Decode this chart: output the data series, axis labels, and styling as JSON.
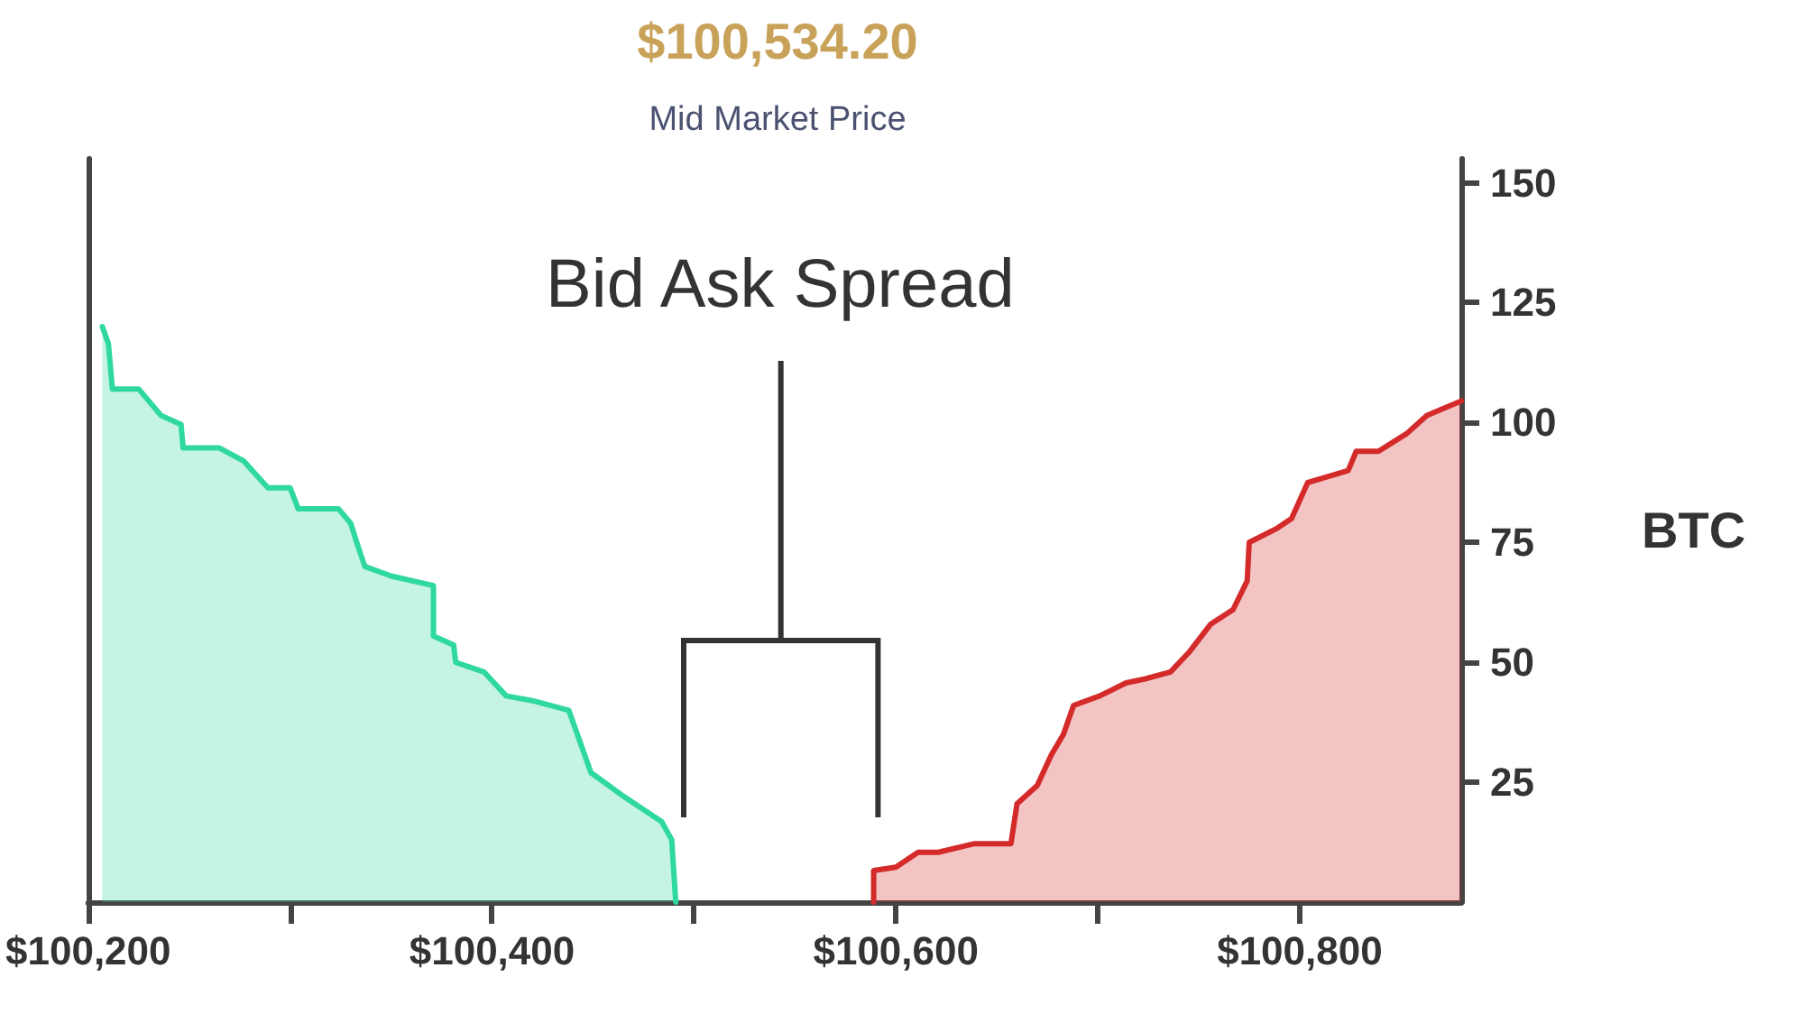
{
  "chart_data": {
    "type": "area",
    "title": "$100,534.20",
    "subtitle": "Mid Market Price",
    "ylabel": "BTC",
    "annotations": [
      "Bid Ask Spread"
    ],
    "xlim": [
      100200,
      100880
    ],
    "ylim": [
      0,
      155
    ],
    "xticks": [
      {
        "value": 100200,
        "label": "$100,200"
      },
      {
        "value": 100300,
        "label": null
      },
      {
        "value": 100400,
        "label": "$100,400"
      },
      {
        "value": 100500,
        "label": null
      },
      {
        "value": 100600,
        "label": "$100,600"
      },
      {
        "value": 100700,
        "label": null
      },
      {
        "value": 100800,
        "label": "$100,800"
      }
    ],
    "yticks": [
      25,
      50,
      75,
      100,
      125,
      150
    ],
    "grid": false,
    "marker": "none",
    "line_style": "solid",
    "series": [
      {
        "color": "#2ed8a0",
        "x": [
          100207,
          100210,
          100212,
          100225,
          100236,
          100246,
          100247,
          100265,
          100277,
          100289,
          100300,
          100304,
          100324,
          100330,
          100333,
          100337,
          100350,
          100371,
          100371,
          100381,
          100382,
          100396,
          100407,
          100420,
          100438,
          100449,
          100464,
          100484,
          100489,
          100491
        ],
        "values": [
          120,
          116.5,
          107,
          107,
          101.5,
          99.6,
          94.7,
          94.7,
          92,
          86.4,
          86.4,
          82,
          82,
          79,
          75,
          70,
          68,
          66,
          55.5,
          53.6,
          50,
          48,
          43,
          42,
          40,
          27,
          22.4,
          16.8,
          13,
          0
        ]
      },
      {
        "color": "#d42a2a",
        "x": [
          100589,
          100589,
          100600,
          100611,
          100621,
          100639,
          100657,
          100660,
          100670,
          100677,
          100683,
          100688,
          100701,
          100714,
          100723,
          100736,
          100745,
          100756,
          100767,
          100774,
          100775,
          100789,
          100796,
          100804,
          100824,
          100828,
          100839,
          100853,
          100863,
          100880
        ],
        "values": [
          0,
          6.6,
          7.3,
          10.4,
          10.4,
          12.2,
          12.2,
          20.5,
          24.3,
          30.7,
          35,
          41,
          43,
          45.7,
          46.5,
          48,
          52,
          58,
          61,
          67,
          75,
          78,
          80,
          87.5,
          90,
          94,
          94,
          97.7,
          101.5,
          104.5
        ]
      }
    ]
  }
}
